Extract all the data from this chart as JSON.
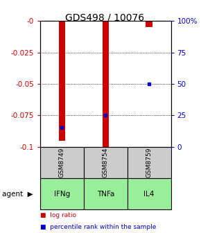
{
  "title": "GDS498 / 10076",
  "samples": [
    "GSM8749",
    "GSM8754",
    "GSM8759"
  ],
  "agents": [
    "IFNg",
    "TNFa",
    "IL4"
  ],
  "log_ratios": [
    -0.095,
    -0.1,
    -0.005
  ],
  "percentile_ranks": [
    15,
    25,
    50
  ],
  "ylim_left": [
    -0.1,
    0.0
  ],
  "ylim_right": [
    0,
    100
  ],
  "yticks_left": [
    0.0,
    -0.025,
    -0.05,
    -0.075,
    -0.1
  ],
  "yticks_right": [
    0,
    25,
    50,
    75,
    100
  ],
  "ytick_labels_left": [
    "-0",
    "-0.025",
    "-0.05",
    "-0.075",
    "-0.1"
  ],
  "ytick_labels_right": [
    "0",
    "25",
    "50",
    "75",
    "100%"
  ],
  "bar_color": "#cc0000",
  "dot_color": "#0000cc",
  "sample_box_color": "#cccccc",
  "agent_box_color": "#99ee99",
  "bg_color": "#ffffff",
  "legend_items": [
    "log ratio",
    "percentile rank within the sample"
  ],
  "title_fontsize": 10,
  "tick_fontsize": 7.5,
  "bar_width": 0.15,
  "x_positions": [
    0,
    1,
    2
  ],
  "xlim": [
    -0.5,
    2.5
  ]
}
